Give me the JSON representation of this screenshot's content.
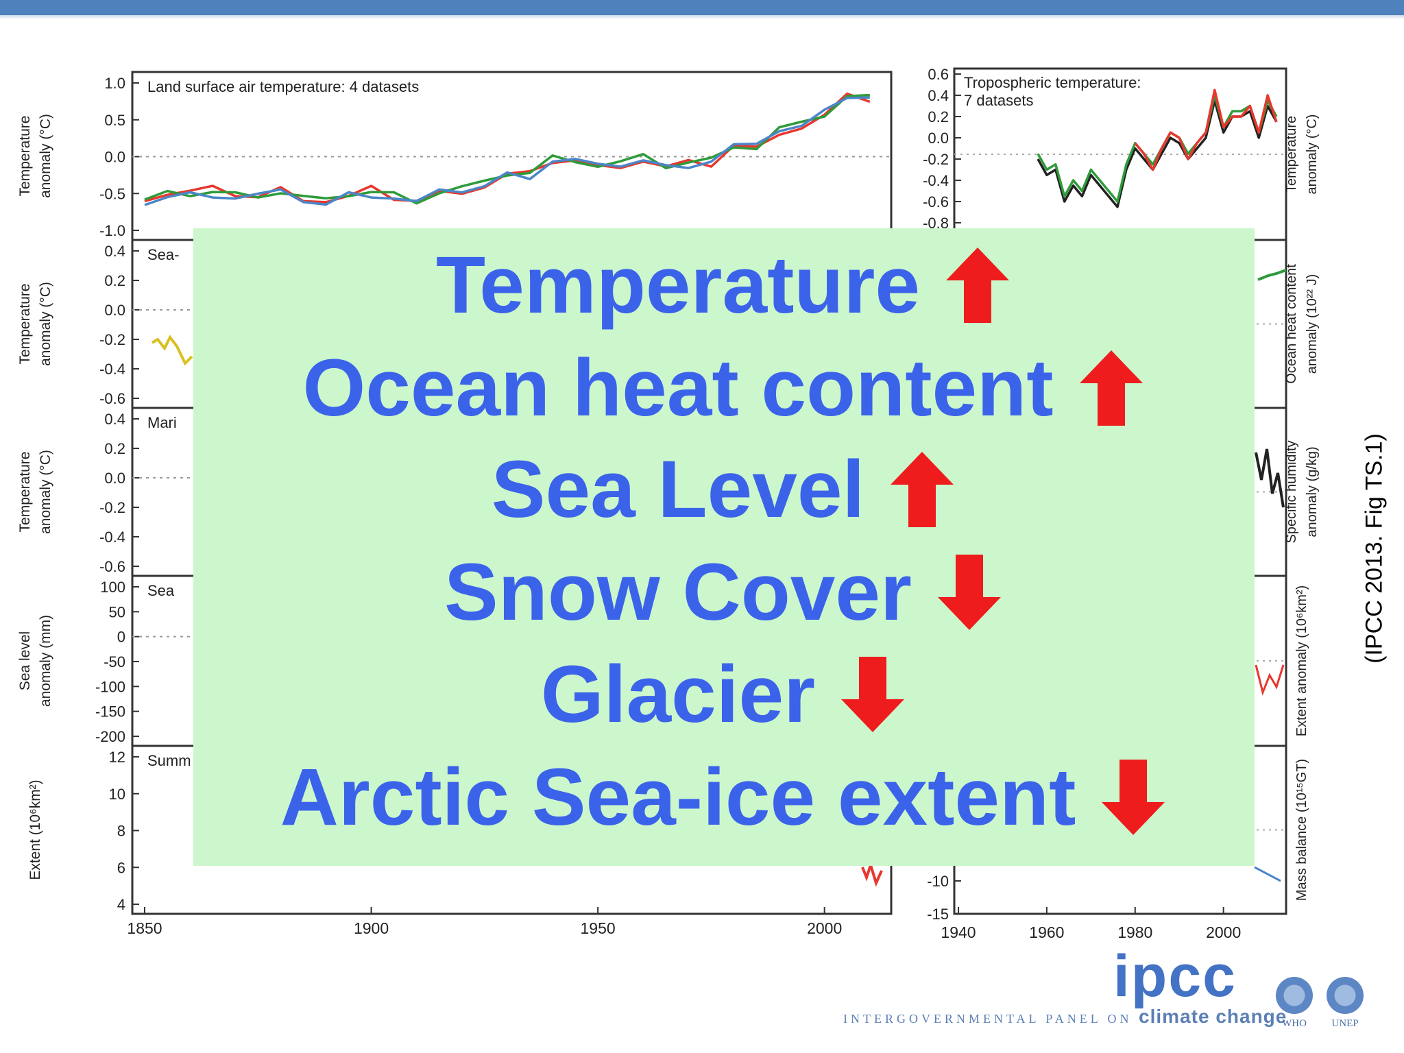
{
  "panels": {
    "left": [
      {
        "title": "Land surface air temperature: 4 datasets",
        "ylabel": [
          "Temperature",
          "anomaly (°C)"
        ],
        "yticks": [
          "1.0",
          "0.5",
          "0.0",
          "-0.5",
          "-1.0"
        ]
      },
      {
        "title": "Sea-",
        "ylabel": [
          "Temperature",
          "anomaly (°C)"
        ],
        "yticks": [
          "0.4",
          "0.2",
          "0.0",
          "-0.2",
          "-0.4",
          "-0.6"
        ]
      },
      {
        "title": "Mari",
        "ylabel": [
          "Temperature",
          "anomaly (°C)"
        ],
        "yticks": [
          "0.4",
          "0.2",
          "0.0",
          "-0.2",
          "-0.4",
          "-0.6"
        ]
      },
      {
        "title": "Sea",
        "ylabel": [
          "Sea level",
          "anomaly (mm)"
        ],
        "yticks": [
          "100",
          "50",
          "0",
          "-50",
          "-100",
          "-150",
          "-200"
        ]
      },
      {
        "title": "Summ",
        "ylabel": [
          "Extent (10⁶km²)"
        ],
        "yticks": [
          "12",
          "10",
          "8",
          "6",
          "4"
        ]
      }
    ],
    "left_xticks": [
      "1850",
      "1900",
      "1950",
      "2000"
    ],
    "right": [
      {
        "title": [
          "Tropospheric temperature:",
          "7 datasets"
        ],
        "ylabel": [
          "Temperature",
          "anomaly (°C)"
        ],
        "yticks": [
          "0.6",
          "0.4",
          "0.2",
          "0.0",
          "-0.2",
          "-0.4",
          "-0.6",
          "-0.8"
        ]
      },
      {
        "ylabel": [
          "Ocean heat content",
          "anomaly (10²² J)"
        ]
      },
      {
        "ylabel": [
          "Specific humidity",
          "anomaly (g/kg)"
        ]
      },
      {
        "ylabel": [
          "Extent anomaly (10⁶km²)"
        ]
      },
      {
        "ylabel": [
          "Mass balance (10¹⁵GT)"
        ],
        "yticks": [
          "-10",
          "-15"
        ]
      }
    ],
    "right_xticks": [
      "1940",
      "1960",
      "1980",
      "2000"
    ]
  },
  "chart_data": [
    {
      "type": "line",
      "title": "Land surface air temperature: 4 datasets",
      "ylabel": "Temperature anomaly (°C)",
      "xlim": [
        1850,
        2012
      ],
      "ylim": [
        -1.0,
        1.0
      ],
      "series": [
        {
          "color": "#e8372d",
          "x": [
            1850,
            1855,
            1860,
            1865,
            1870,
            1875,
            1880,
            1885,
            1890,
            1895,
            1900,
            1905,
            1910,
            1915,
            1920,
            1925,
            1930,
            1935,
            1940,
            1945,
            1950,
            1955,
            1960,
            1965,
            1970,
            1975,
            1980,
            1985,
            1990,
            1995,
            2000,
            2005,
            2010
          ],
          "y": [
            -0.55,
            -0.5,
            -0.48,
            -0.45,
            -0.5,
            -0.55,
            -0.45,
            -0.55,
            -0.6,
            -0.55,
            -0.45,
            -0.55,
            -0.6,
            -0.5,
            -0.45,
            -0.4,
            -0.25,
            -0.25,
            -0.05,
            -0.05,
            -0.15,
            -0.1,
            -0.05,
            -0.15,
            -0.1,
            -0.1,
            0.15,
            0.1,
            0.35,
            0.4,
            0.55,
            0.8,
            0.78
          ]
        },
        {
          "color": "#2e9b3a",
          "x": [
            1850,
            1855,
            1860,
            1865,
            1870,
            1875,
            1880,
            1885,
            1890,
            1895,
            1900,
            1905,
            1910,
            1915,
            1920,
            1925,
            1930,
            1935,
            1940,
            1945,
            1950,
            1955,
            1960,
            1965,
            1970,
            1975,
            1980,
            1985,
            1990,
            1995,
            2000,
            2005,
            2010
          ],
          "y": [
            -0.6,
            -0.52,
            -0.5,
            -0.48,
            -0.52,
            -0.5,
            -0.48,
            -0.55,
            -0.62,
            -0.5,
            -0.48,
            -0.52,
            -0.58,
            -0.48,
            -0.42,
            -0.38,
            -0.22,
            -0.22,
            -0.02,
            -0.02,
            -0.12,
            -0.08,
            -0.02,
            -0.12,
            -0.08,
            -0.05,
            0.18,
            0.12,
            0.38,
            0.42,
            0.58,
            0.82,
            0.8
          ]
        },
        {
          "color": "#4a86c8",
          "x": [
            1850,
            1855,
            1860,
            1865,
            1870,
            1875,
            1880,
            1885,
            1890,
            1895,
            1900,
            1905,
            1910,
            1915,
            1920,
            1925,
            1930,
            1935,
            1940,
            1945,
            1950,
            1955,
            1960,
            1965,
            1970,
            1975,
            1980,
            1985,
            1990,
            1995,
            2000,
            2005,
            2010
          ],
          "y": [
            -0.62,
            -0.55,
            -0.52,
            -0.5,
            -0.55,
            -0.52,
            -0.5,
            -0.58,
            -0.65,
            -0.52,
            -0.5,
            -0.55,
            -0.62,
            -0.5,
            -0.45,
            -0.4,
            -0.25,
            -0.25,
            -0.05,
            -0.05,
            -0.15,
            -0.1,
            -0.05,
            -0.15,
            -0.1,
            -0.05,
            0.15,
            0.12,
            0.38,
            0.42,
            0.6,
            0.85,
            0.82
          ]
        }
      ]
    },
    {
      "type": "line",
      "title": "Tropospheric temperature: 7 datasets",
      "ylabel": "Temperature anomaly (°C)",
      "xlim": [
        1940,
        2012
      ],
      "ylim": [
        -0.8,
        0.6
      ],
      "series": [
        {
          "color": "#222222",
          "x": [
            1958,
            1960,
            1962,
            1964,
            1966,
            1968,
            1970,
            1972,
            1974,
            1976,
            1978,
            1980,
            1982,
            1984,
            1986,
            1988,
            1990,
            1992,
            1994,
            1996,
            1998,
            2000,
            2002,
            2004,
            2006,
            2008,
            2010,
            2012
          ],
          "y": [
            -0.2,
            -0.35,
            -0.3,
            -0.6,
            -0.45,
            -0.55,
            -0.35,
            -0.45,
            -0.55,
            -0.65,
            -0.3,
            -0.1,
            -0.2,
            -0.3,
            -0.15,
            0.0,
            -0.05,
            -0.2,
            -0.1,
            0.0,
            0.35,
            0.05,
            0.2,
            0.2,
            0.25,
            0.0,
            0.3,
            0.15
          ]
        },
        {
          "color": "#2e9b3a",
          "x": [
            1958,
            1960,
            1962,
            1964,
            1966,
            1968,
            1970,
            1972,
            1974,
            1976,
            1978,
            1980,
            1982,
            1984,
            1986,
            1988,
            1990,
            1992,
            1994,
            1996,
            1998,
            2000,
            2002,
            2004,
            2006,
            2008,
            2010,
            2012
          ],
          "y": [
            -0.15,
            -0.3,
            -0.25,
            -0.55,
            -0.4,
            -0.5,
            -0.3,
            -0.4,
            -0.5,
            -0.6,
            -0.25,
            -0.05,
            -0.15,
            -0.25,
            -0.1,
            0.05,
            0.0,
            -0.15,
            -0.05,
            0.05,
            0.4,
            0.1,
            0.25,
            0.25,
            0.3,
            0.05,
            0.35,
            0.2
          ]
        },
        {
          "color": "#e8372d",
          "x": [
            1980,
            1982,
            1984,
            1986,
            1988,
            1990,
            1992,
            1994,
            1996,
            1998,
            2000,
            2002,
            2004,
            2006,
            2008,
            2010,
            2012
          ],
          "y": [
            -0.05,
            -0.15,
            -0.3,
            -0.1,
            0.05,
            0.0,
            -0.2,
            -0.05,
            0.05,
            0.45,
            0.1,
            0.2,
            0.2,
            0.3,
            0.05,
            0.4,
            0.15
          ]
        }
      ]
    }
  ],
  "overlay": {
    "lines": [
      {
        "text": "Temperature",
        "arrow": "up"
      },
      {
        "text": "Ocean heat content",
        "arrow": "up"
      },
      {
        "text": "Sea Level",
        "arrow": "up"
      },
      {
        "text": "Snow Cover",
        "arrow": "down"
      },
      {
        "text": "Glacier",
        "arrow": "down"
      },
      {
        "text": "Arctic Sea-ice extent",
        "arrow": "down"
      }
    ],
    "text_color": "#3b63ea",
    "arrow_color": "#ee1c1c",
    "background": "#ccf7cc"
  },
  "citation": "(IPCC 2013. Fig TS.1)",
  "footer": {
    "logo_text": "ipcc",
    "subtitle_prefix": "INTERGOVERNMENTAL PANEL ON",
    "subtitle_brand": "climate change",
    "org1": "WHO",
    "org2": "UNEP"
  }
}
